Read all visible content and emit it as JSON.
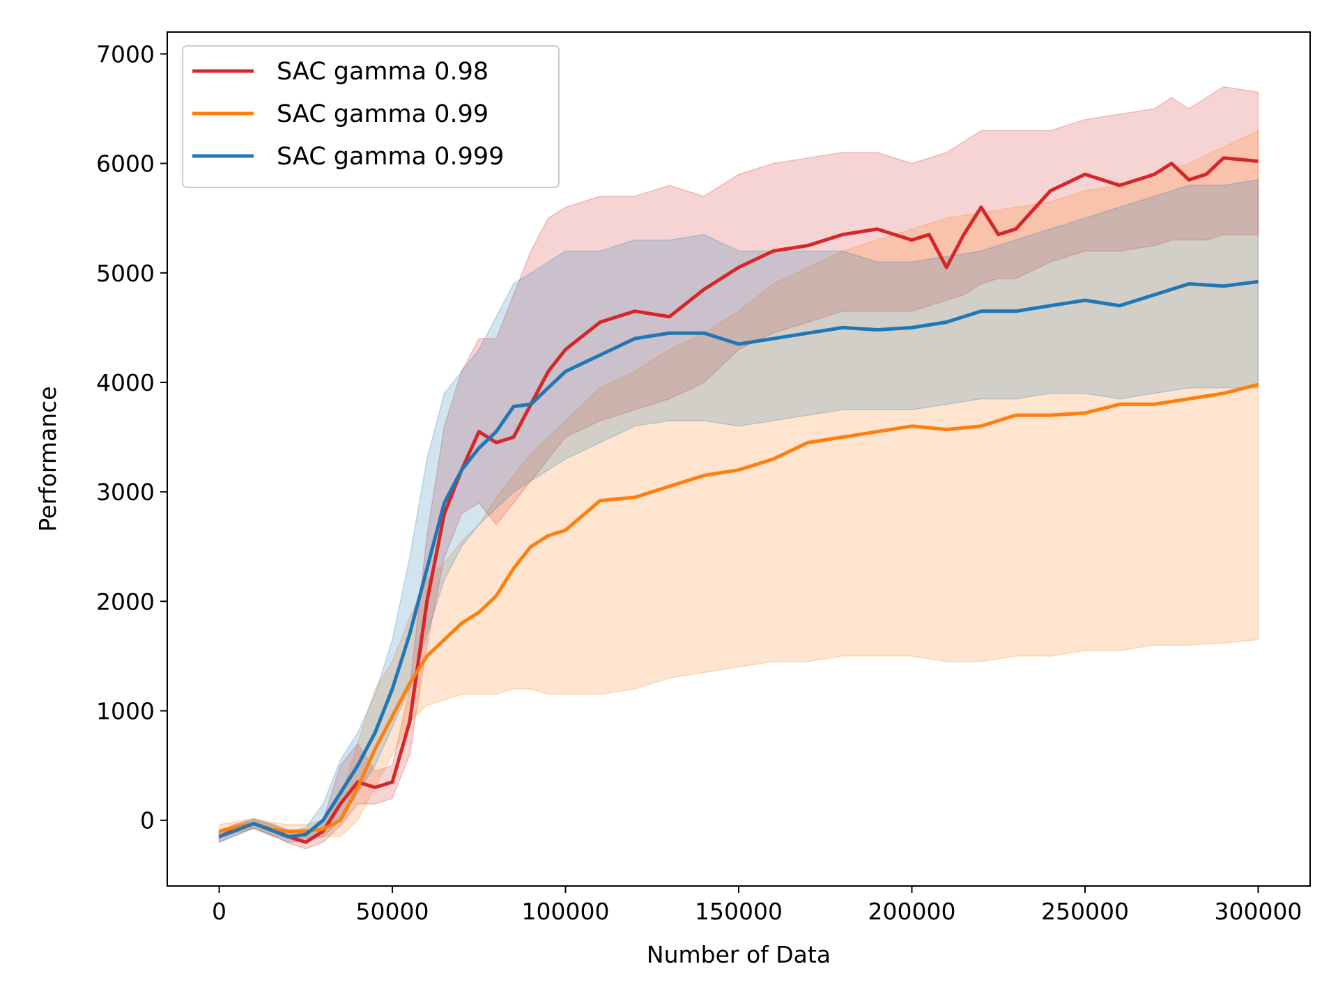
{
  "chart_data": {
    "type": "line",
    "xlabel": "Number of Data",
    "ylabel": "Performance",
    "xlim": [
      -15000,
      315000
    ],
    "ylim": [
      -600,
      7200
    ],
    "xticks": [
      0,
      50000,
      100000,
      150000,
      200000,
      250000,
      300000
    ],
    "yticks": [
      0,
      1000,
      2000,
      3000,
      4000,
      5000,
      6000,
      7000
    ],
    "grid": false,
    "legend_position": "top-left",
    "series": [
      {
        "name": "SAC gamma 0.98",
        "color": "#d62728",
        "x": [
          0,
          5000,
          10000,
          15000,
          20000,
          25000,
          30000,
          35000,
          40000,
          45000,
          50000,
          55000,
          60000,
          65000,
          70000,
          75000,
          80000,
          85000,
          90000,
          95000,
          100000,
          110000,
          120000,
          130000,
          140000,
          150000,
          160000,
          170000,
          180000,
          190000,
          200000,
          205000,
          210000,
          215000,
          220000,
          225000,
          230000,
          240000,
          250000,
          260000,
          270000,
          275000,
          280000,
          285000,
          290000,
          300000
        ],
        "mean": [
          -150,
          -80,
          -30,
          -80,
          -150,
          -200,
          -100,
          150,
          350,
          300,
          350,
          900,
          2000,
          2800,
          3200,
          3550,
          3450,
          3500,
          3800,
          4100,
          4300,
          4550,
          4650,
          4600,
          4850,
          5050,
          5200,
          5250,
          5350,
          5400,
          5300,
          5350,
          5050,
          5350,
          5600,
          5350,
          5400,
          5750,
          5900,
          5800,
          5900,
          6000,
          5850,
          5900,
          6050,
          6020
        ],
        "upper": [
          -100,
          -30,
          10,
          -30,
          -90,
          -130,
          0,
          500,
          700,
          450,
          500,
          1200,
          2600,
          3600,
          4100,
          4400,
          4400,
          4800,
          5200,
          5500,
          5600,
          5700,
          5700,
          5800,
          5700,
          5900,
          6000,
          6050,
          6100,
          6100,
          6000,
          6050,
          6100,
          6200,
          6300,
          6300,
          6300,
          6300,
          6400,
          6450,
          6500,
          6600,
          6500,
          6600,
          6700,
          6650
        ],
        "lower": [
          -200,
          -130,
          -70,
          -130,
          -210,
          -260,
          -200,
          -50,
          150,
          150,
          200,
          600,
          1600,
          2400,
          2800,
          2900,
          2700,
          2900,
          3100,
          3300,
          3500,
          3650,
          3750,
          3850,
          4000,
          4300,
          4450,
          4550,
          4650,
          4650,
          4650,
          4700,
          4750,
          4800,
          4900,
          4950,
          4950,
          5100,
          5200,
          5200,
          5250,
          5300,
          5300,
          5300,
          5350,
          5350
        ]
      },
      {
        "name": "SAC gamma 0.99",
        "color": "#ff7f0e",
        "x": [
          0,
          5000,
          10000,
          15000,
          20000,
          25000,
          30000,
          35000,
          40000,
          45000,
          50000,
          55000,
          60000,
          65000,
          70000,
          75000,
          80000,
          85000,
          90000,
          95000,
          100000,
          110000,
          120000,
          130000,
          140000,
          150000,
          160000,
          170000,
          180000,
          190000,
          200000,
          210000,
          220000,
          230000,
          240000,
          250000,
          260000,
          270000,
          280000,
          290000,
          300000
        ],
        "mean": [
          -100,
          -60,
          -30,
          -80,
          -100,
          -100,
          -80,
          0,
          300,
          650,
          950,
          1250,
          1500,
          1650,
          1800,
          1900,
          2050,
          2300,
          2500,
          2600,
          2650,
          2920,
          2950,
          3050,
          3150,
          3200,
          3300,
          3450,
          3500,
          3550,
          3600,
          3570,
          3600,
          3700,
          3700,
          3720,
          3800,
          3800,
          3850,
          3900,
          3980
        ],
        "upper": [
          -40,
          -10,
          20,
          -20,
          -40,
          -40,
          0,
          200,
          700,
          1200,
          1450,
          1850,
          2200,
          2350,
          2550,
          2700,
          2950,
          3150,
          3350,
          3500,
          3650,
          3950,
          4100,
          4300,
          4450,
          4650,
          4900,
          5050,
          5200,
          5300,
          5400,
          5500,
          5550,
          5600,
          5650,
          5750,
          5800,
          5900,
          6000,
          6150,
          6300
        ],
        "lower": [
          -160,
          -110,
          -80,
          -140,
          -160,
          -160,
          -150,
          -150,
          0,
          300,
          600,
          900,
          1050,
          1100,
          1150,
          1150,
          1150,
          1200,
          1200,
          1150,
          1150,
          1150,
          1200,
          1300,
          1350,
          1400,
          1450,
          1450,
          1500,
          1500,
          1500,
          1450,
          1450,
          1500,
          1500,
          1550,
          1550,
          1600,
          1600,
          1620,
          1650
        ]
      },
      {
        "name": "SAC gamma 0.999",
        "color": "#1f77b4",
        "x": [
          0,
          5000,
          10000,
          15000,
          20000,
          25000,
          30000,
          35000,
          40000,
          45000,
          50000,
          55000,
          60000,
          65000,
          70000,
          75000,
          80000,
          85000,
          90000,
          95000,
          100000,
          110000,
          120000,
          130000,
          140000,
          150000,
          160000,
          170000,
          180000,
          190000,
          200000,
          210000,
          220000,
          230000,
          240000,
          250000,
          260000,
          270000,
          280000,
          290000,
          300000
        ],
        "mean": [
          -150,
          -90,
          -30,
          -90,
          -150,
          -130,
          0,
          250,
          500,
          800,
          1200,
          1700,
          2300,
          2900,
          3200,
          3400,
          3550,
          3780,
          3800,
          3950,
          4100,
          4250,
          4400,
          4450,
          4450,
          4350,
          4400,
          4450,
          4500,
          4480,
          4500,
          4550,
          4650,
          4650,
          4700,
          4750,
          4700,
          4800,
          4900,
          4880,
          4920
        ],
        "upper": [
          -100,
          -40,
          10,
          -40,
          -100,
          -70,
          150,
          550,
          800,
          1150,
          1650,
          2400,
          3300,
          3900,
          4100,
          4300,
          4600,
          4900,
          5000,
          5100,
          5200,
          5200,
          5300,
          5300,
          5350,
          5200,
          5200,
          5200,
          5200,
          5100,
          5100,
          5150,
          5200,
          5300,
          5400,
          5500,
          5600,
          5700,
          5800,
          5800,
          5850
        ],
        "lower": [
          -200,
          -140,
          -70,
          -140,
          -200,
          -190,
          -150,
          0,
          250,
          500,
          850,
          1200,
          1700,
          2200,
          2500,
          2700,
          2850,
          3000,
          3100,
          3200,
          3300,
          3450,
          3600,
          3650,
          3650,
          3600,
          3650,
          3700,
          3750,
          3750,
          3750,
          3800,
          3850,
          3850,
          3900,
          3900,
          3850,
          3900,
          3950,
          3950,
          3950
        ]
      }
    ]
  }
}
